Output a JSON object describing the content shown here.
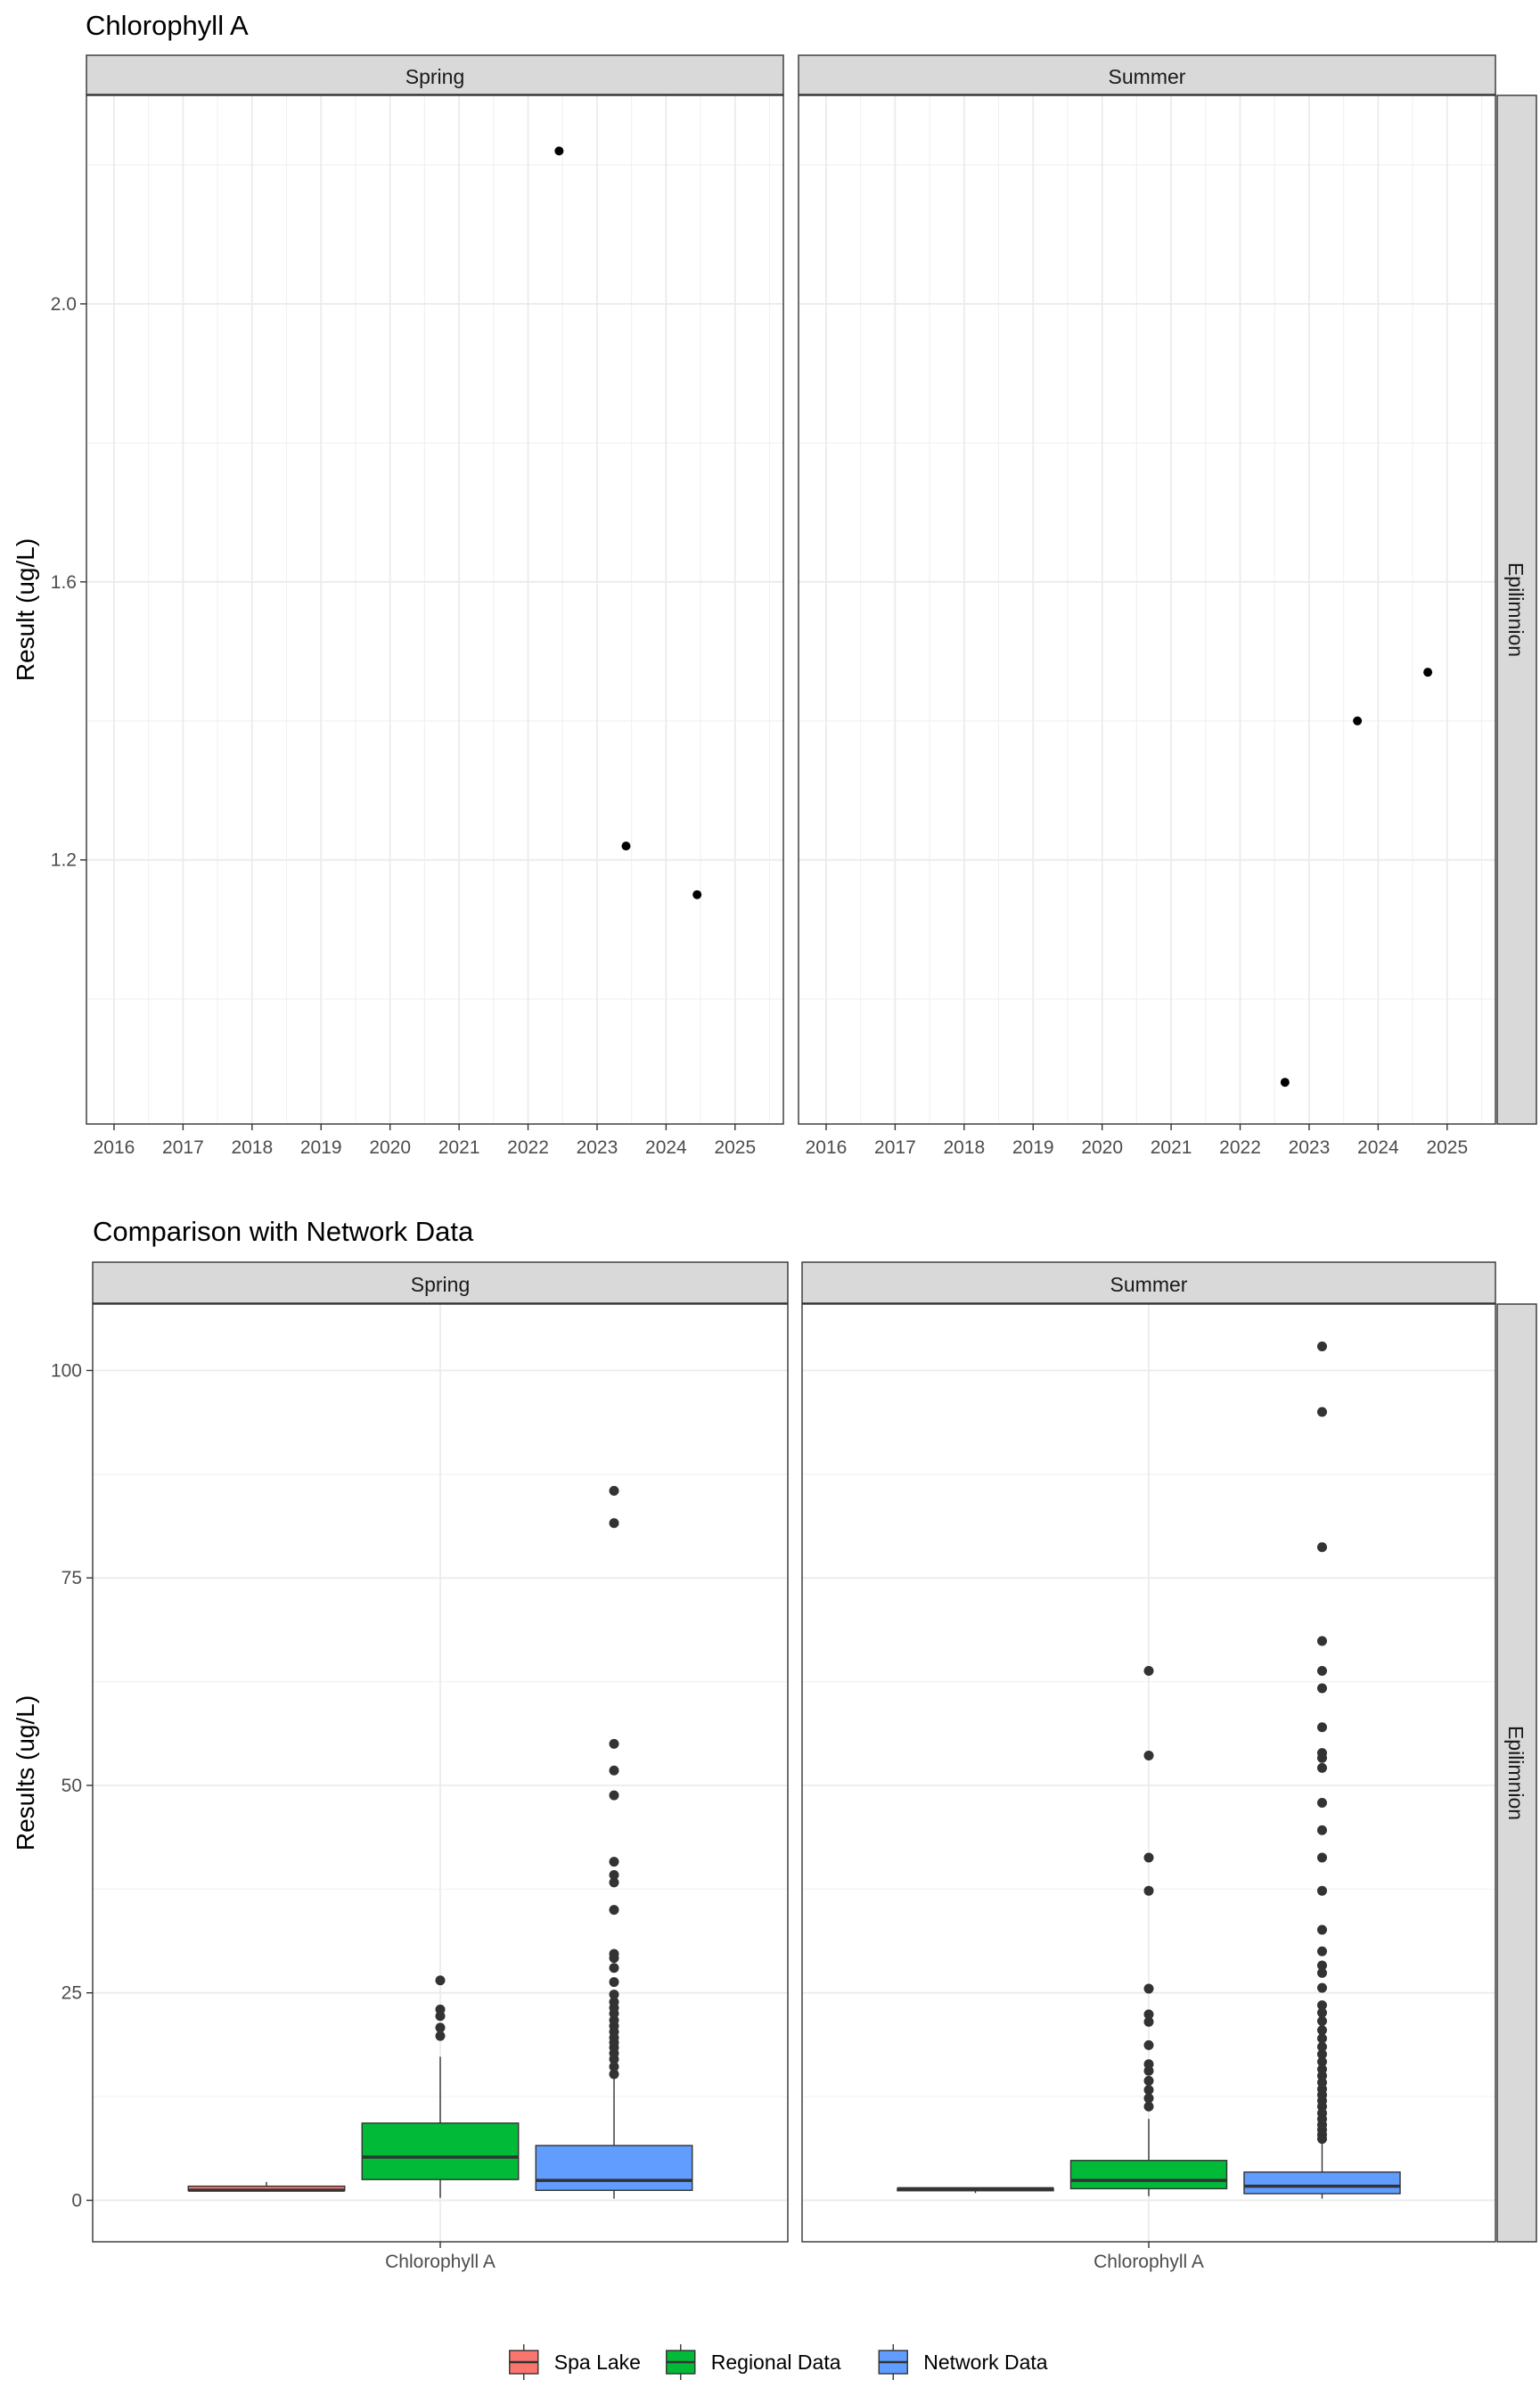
{
  "chart_data": [
    {
      "type": "scatter",
      "title": "Chlorophyll A",
      "ylabel": "Result (ug/L)",
      "xlabel": "",
      "x_ticks": [
        "2016",
        "2017",
        "2018",
        "2019",
        "2020",
        "2021",
        "2022",
        "2023",
        "2024",
        "2025"
      ],
      "y_ticks": [
        "1.2",
        "1.6",
        "2.0"
      ],
      "xlim": [
        2015.6,
        2025.7
      ],
      "ylim": [
        0.82,
        2.3
      ],
      "row_label": "Epilimnion",
      "grid": true,
      "facets": [
        {
          "label": "Spring",
          "points": [
            {
              "x": 2022.45,
              "y": 2.22
            },
            {
              "x": 2023.42,
              "y": 1.22
            },
            {
              "x": 2024.45,
              "y": 1.15
            }
          ]
        },
        {
          "label": "Summer",
          "points": [
            {
              "x": 2022.65,
              "y": 0.88
            },
            {
              "x": 2023.7,
              "y": 1.4
            },
            {
              "x": 2024.72,
              "y": 1.47
            }
          ]
        }
      ]
    },
    {
      "type": "box",
      "title": "Comparison with Network Data",
      "ylabel": "Results (ug/L)",
      "xlabel": "",
      "category": "Chlorophyll A",
      "y_ticks": [
        "0",
        "25",
        "50",
        "75",
        "100"
      ],
      "ylim": [
        -5,
        108
      ],
      "row_label": "Epilimnion",
      "grid": true,
      "legend": {
        "position": "bottom",
        "entries": [
          {
            "name": "Spa Lake",
            "color": "#F8766D"
          },
          {
            "name": "Regional Data",
            "color": "#00BA38"
          },
          {
            "name": "Network Data",
            "color": "#619CFF"
          }
        ]
      },
      "facets": [
        {
          "label": "Spring",
          "series": [
            {
              "name": "Spa Lake",
              "color": "#F8766D",
              "min": 1.15,
              "q1": 1.17,
              "median": 1.22,
              "q3": 1.7,
              "max": 2.22,
              "outliers": []
            },
            {
              "name": "Regional Data",
              "color": "#00BA38",
              "min": 0.3,
              "q1": 2.5,
              "median": 5.2,
              "q3": 9.3,
              "max": 17.3,
              "outliers": [
                19.8,
                20.8,
                22.2,
                23.0,
                26.5
              ]
            },
            {
              "name": "Network Data",
              "color": "#619CFF",
              "min": 0.2,
              "q1": 1.2,
              "median": 2.4,
              "q3": 6.6,
              "max": 14.6,
              "outliers": [
                15.2,
                16.1,
                17.0,
                17.7,
                18.4,
                19.0,
                19.6,
                20.3,
                21.0,
                21.7,
                22.5,
                23.2,
                23.9,
                24.8,
                26.3,
                28.0,
                29.2,
                29.7,
                35.0,
                38.3,
                39.2,
                40.8,
                48.8,
                51.8,
                55.0,
                81.6,
                85.5
              ]
            }
          ]
        },
        {
          "label": "Summer",
          "series": [
            {
              "name": "Spa Lake",
              "color": "#F8766D",
              "min": 0.88,
              "q1": 1.15,
              "median": 1.4,
              "q3": 1.44,
              "max": 1.47,
              "outliers": []
            },
            {
              "name": "Regional Data",
              "color": "#00BA38",
              "min": 0.5,
              "q1": 1.4,
              "median": 2.4,
              "q3": 4.8,
              "max": 9.8,
              "outliers": [
                11.3,
                12.3,
                13.3,
                14.4,
                15.6,
                16.4,
                18.7,
                21.5,
                22.4,
                25.5,
                37.3,
                41.3,
                53.6,
                63.8
              ]
            },
            {
              "name": "Network Data",
              "color": "#619CFF",
              "min": 0.2,
              "q1": 0.8,
              "median": 1.7,
              "q3": 3.4,
              "max": 7.0,
              "outliers": [
                7.4,
                7.9,
                8.5,
                9.1,
                9.8,
                10.5,
                11.3,
                12.0,
                12.7,
                13.4,
                14.2,
                15.0,
                15.8,
                16.7,
                17.6,
                18.5,
                19.5,
                20.5,
                21.6,
                22.6,
                23.5,
                25.6,
                27.4,
                28.3,
                30.0,
                32.6,
                37.3,
                41.3,
                44.6,
                47.9,
                52.1,
                53.3,
                53.9,
                57.0,
                61.7,
                63.8,
                67.4,
                78.7,
                95.0,
                102.9
              ]
            }
          ]
        }
      ]
    }
  ]
}
